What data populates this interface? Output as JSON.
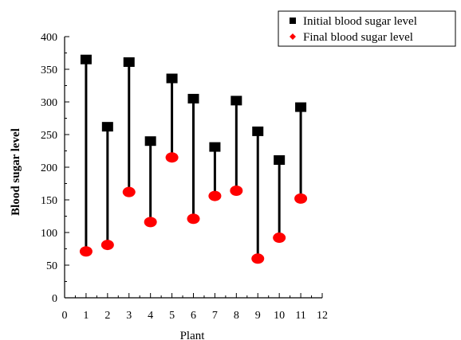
{
  "chart_data": {
    "type": "scatter",
    "subtype": "dumbbell",
    "xlabel": "Plant",
    "ylabel": "Blood sugar level",
    "xlim": [
      0,
      12
    ],
    "ylim": [
      0,
      400
    ],
    "xticks": [
      0,
      1,
      2,
      3,
      4,
      5,
      6,
      7,
      8,
      9,
      10,
      11,
      12
    ],
    "yticks": [
      0,
      50,
      100,
      150,
      200,
      250,
      300,
      350,
      400
    ],
    "grid": false,
    "legend_position": "top-right",
    "x": [
      1,
      2,
      3,
      4,
      5,
      6,
      7,
      8,
      9,
      10,
      11
    ],
    "series": [
      {
        "name": "Initial blood sugar level",
        "marker": "square",
        "color": "#000000",
        "values": [
          365,
          262,
          361,
          240,
          336,
          305,
          231,
          302,
          255,
          211,
          292
        ]
      },
      {
        "name": "Final blood sugar level",
        "marker": "circle",
        "color": "#ff0000",
        "values": [
          71,
          81,
          162,
          116,
          215,
          121,
          156,
          164,
          60,
          92,
          152
        ]
      }
    ]
  }
}
